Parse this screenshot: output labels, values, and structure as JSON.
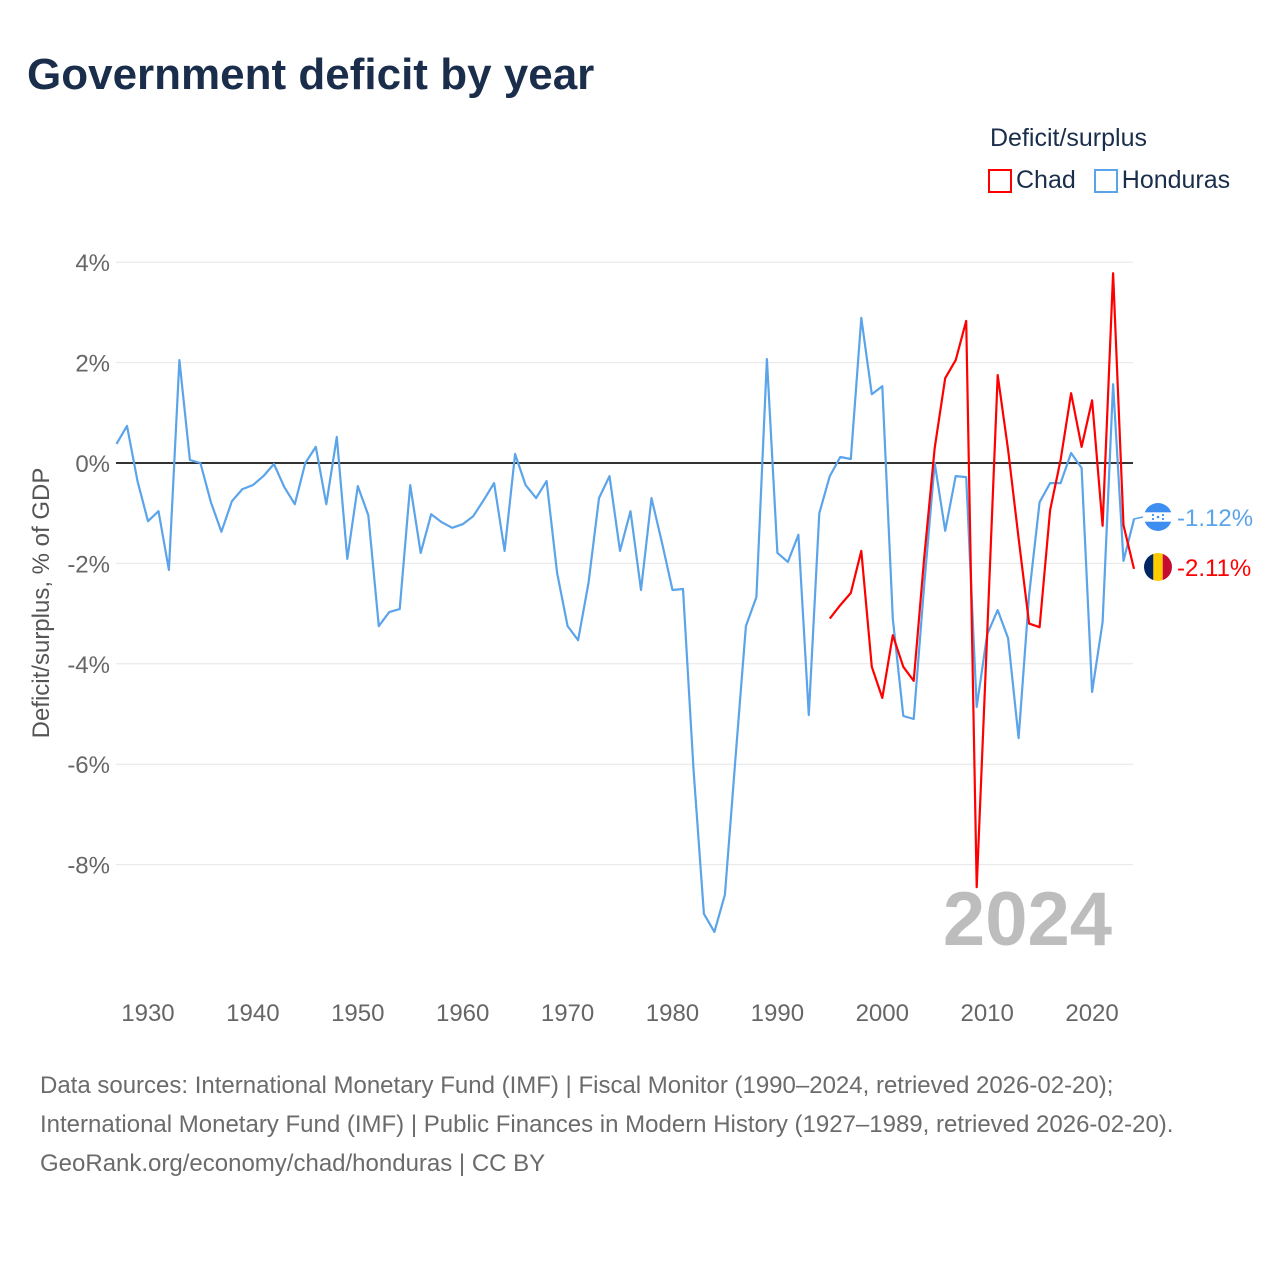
{
  "title": "Government deficit by year",
  "legend_title": "Deficit/surplus",
  "footer": {
    "sources": "Data sources: International Monetary Fund (IMF) | Fiscal Monitor (1990–2024, retrieved 2026-02-20); International Monetary Fund (IMF) | Public Finances in Modern History (1927–1989, retrieved 2026-02-20).",
    "link": "GeoRank.org/economy/chad/honduras | CC BY"
  },
  "chart_data": {
    "type": "line",
    "title": "Government deficit by year",
    "xlabel": "",
    "ylabel": "Deficit/surplus, % of GDP",
    "xlim": [
      1927,
      2024
    ],
    "ylim": [
      -9.6,
      4.2
    ],
    "x_ticks": [
      1930,
      1940,
      1950,
      1960,
      1970,
      1980,
      1990,
      2000,
      2010,
      2020
    ],
    "y_ticks": [
      4,
      2,
      0,
      -2,
      -4,
      -6,
      -8
    ],
    "y_tick_labels": [
      "4%",
      "2%",
      "0%",
      "-2%",
      "-4%",
      "-6%",
      "-8%"
    ],
    "grid": true,
    "legend_placement": "top-right",
    "current_year_label": "2024",
    "series": [
      {
        "name": "Chad",
        "color": "#ff0000",
        "start_year": 1995,
        "end_label": "-2.11%",
        "flag": "chad-flag",
        "values": [
          -3.1,
          -2.83,
          -2.59,
          -1.75,
          -4.06,
          -4.68,
          -3.43,
          -4.06,
          -4.34,
          -1.89,
          0.3,
          1.69,
          2.05,
          2.83,
          -8.45,
          -3.4,
          1.75,
          0.26,
          -1.5,
          -3.2,
          -3.27,
          -0.94,
          0.06,
          1.39,
          0.32,
          1.25,
          -1.25,
          3.78,
          -1.24,
          -2.11
        ]
      },
      {
        "name": "Honduras",
        "color": "#5ba4ea",
        "start_year": 1927,
        "end_label": "-1.12%",
        "flag": "honduras-flag",
        "values": [
          0.38,
          0.74,
          -0.36,
          -1.16,
          -0.96,
          -2.13,
          2.05,
          0.06,
          0.0,
          -0.78,
          -1.37,
          -0.76,
          -0.52,
          -0.44,
          -0.26,
          -0.02,
          -0.48,
          -0.82,
          0.0,
          0.32,
          -0.82,
          0.52,
          -1.91,
          -0.46,
          -1.04,
          -3.25,
          -2.97,
          -2.91,
          -0.44,
          -1.79,
          -1.02,
          -1.18,
          -1.29,
          -1.22,
          -1.06,
          -0.74,
          -0.4,
          -1.75,
          0.18,
          -0.44,
          -0.7,
          -0.36,
          -2.19,
          -3.25,
          -3.53,
          -2.39,
          -0.7,
          -0.26,
          -1.75,
          -0.96,
          -2.53,
          -0.7,
          -1.59,
          -2.53,
          -2.51,
          -6.1,
          -8.98,
          -9.34,
          -8.6,
          -5.9,
          -3.25,
          -2.67,
          2.07,
          -1.79,
          -1.97,
          -1.43,
          -5.02,
          -1.0,
          -0.26,
          0.12,
          0.08,
          2.89,
          1.37,
          1.53,
          -3.1,
          -5.04,
          -5.1,
          -2.43,
          0.0,
          -1.35,
          -0.26,
          -0.28,
          -4.86,
          -3.41,
          -2.93,
          -3.49,
          -5.48,
          -2.63,
          -0.78,
          -0.4,
          -0.4,
          0.2,
          -0.1,
          -4.56,
          -3.17,
          1.57,
          -1.95,
          -1.12
        ]
      }
    ]
  }
}
